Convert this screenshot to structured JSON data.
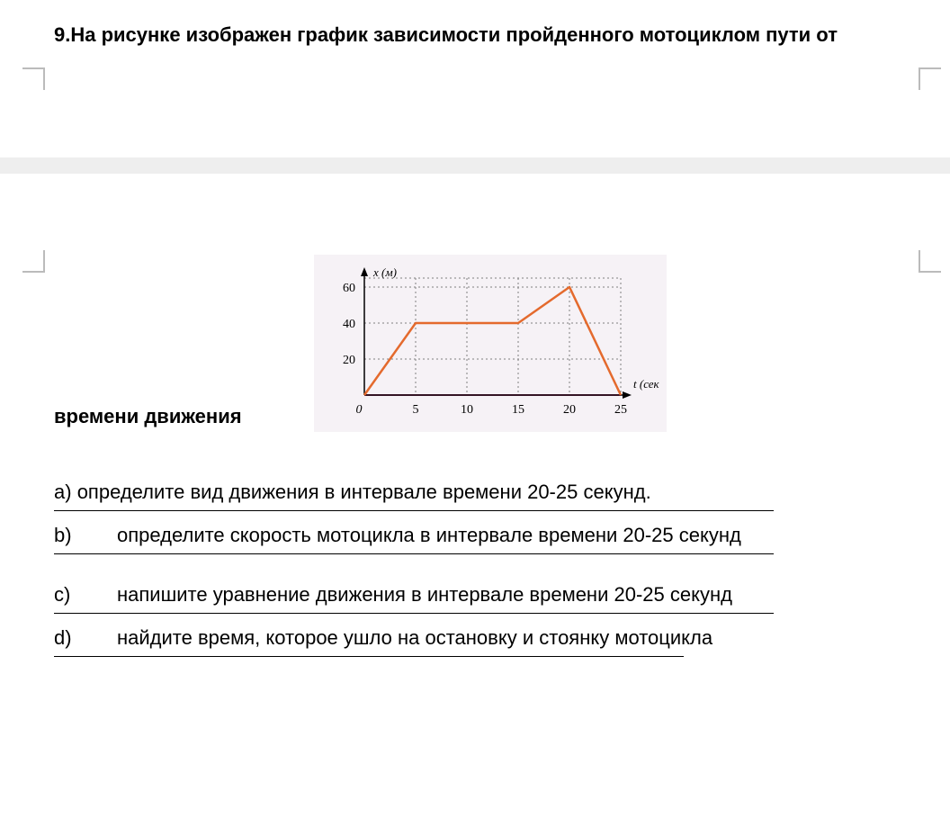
{
  "question": {
    "number_and_title": "9.На рисунке изображен график зависимости пройденного мотоциклом пути от",
    "time_caption": "времени движения"
  },
  "chart": {
    "type": "line",
    "y_axis_label": "x (м)",
    "x_axis_label": "t (сек )",
    "origin_label": "0",
    "x_ticks": [
      5,
      10,
      15,
      20,
      25
    ],
    "y_ticks": [
      20,
      40,
      60
    ],
    "x_range": [
      0,
      25
    ],
    "y_range": [
      0,
      65
    ],
    "data_points": [
      {
        "t": 0,
        "x": 0
      },
      {
        "t": 5,
        "x": 40
      },
      {
        "t": 15,
        "x": 40
      },
      {
        "t": 20,
        "x": 60
      },
      {
        "t": 25,
        "x": 0
      }
    ],
    "colors": {
      "background": "#f6f2f6",
      "grid": "#808080",
      "axis": "#000000",
      "series": "#e46a2d",
      "tick_text": "#000000",
      "baseline": "#d04f8f"
    },
    "line_width": 2.5,
    "grid_dash": "2,3",
    "font_size_labels": 13,
    "font_style_labels": "italic"
  },
  "subquestions": {
    "a": {
      "label": "a)",
      "text": "определите вид движения в интервале времени 20-25 секунд."
    },
    "b": {
      "label": "b)",
      "text": "определите скорость мотоцикла в интервале времени 20-25 секунд"
    },
    "c": {
      "label": "c)",
      "text": "напишите уравнение движения в интервале времени 20-25 секунд"
    },
    "d": {
      "label": "d)",
      "text": "найдите время, которое ушло на остановку и стоянку мотоцикла"
    }
  }
}
